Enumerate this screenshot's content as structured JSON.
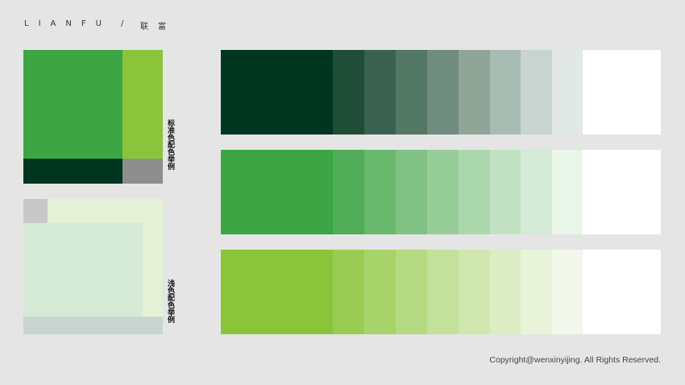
{
  "header": {
    "brand": "LIANFU",
    "separator": "/",
    "brand_cn": "联富"
  },
  "examples": [
    {
      "label": "标准色配色举例"
    },
    {
      "label": "浅色配色举例"
    }
  ],
  "footer": {
    "copyright": "Copyright@wenxinyijing. All Rights Reserved."
  }
}
